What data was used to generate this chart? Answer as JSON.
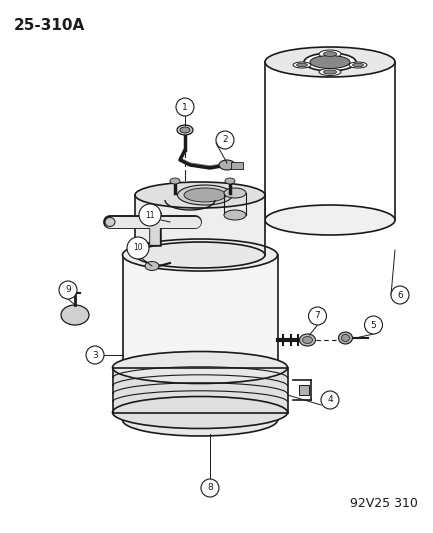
{
  "title": "25-310A",
  "watermark": "92V25 310",
  "bg_color": "#ffffff",
  "title_fontsize": 11,
  "watermark_fontsize": 9,
  "draw_color": "#1a1a1a"
}
